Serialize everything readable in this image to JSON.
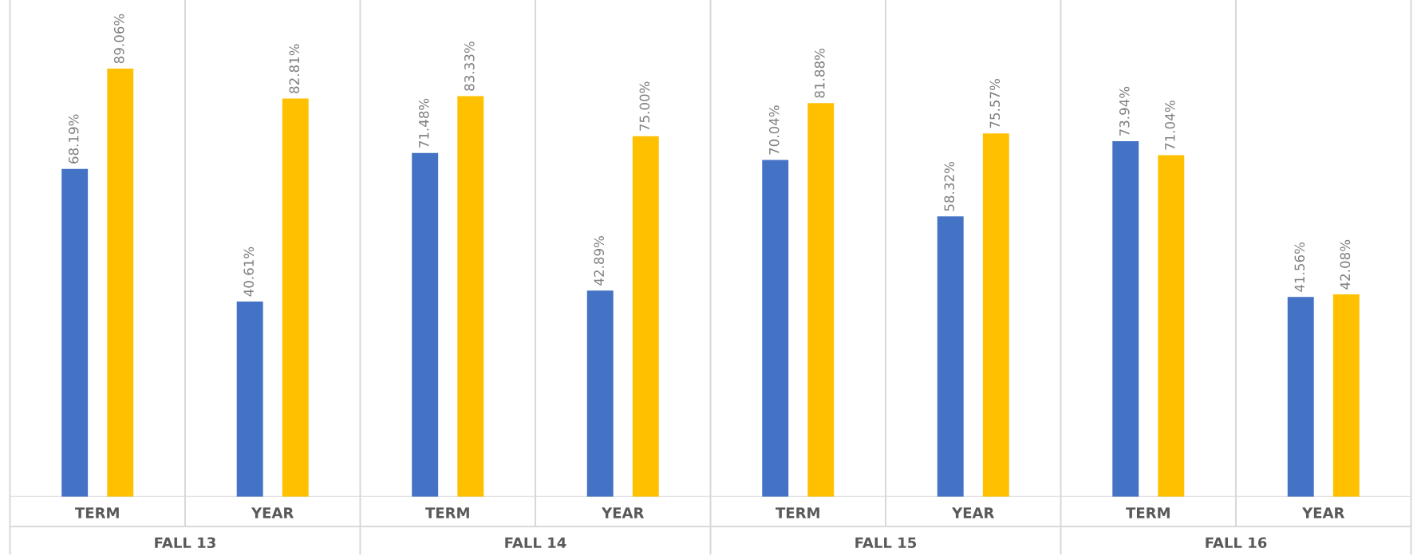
{
  "chart_data": {
    "type": "bar",
    "categories": [
      "TERM",
      "YEAR",
      "TERM",
      "YEAR",
      "TERM",
      "YEAR",
      "TERM",
      "YEAR"
    ],
    "series": [
      {
        "color": "#4472c4",
        "values": [
          68.19,
          40.61,
          71.48,
          42.89,
          70.04,
          58.32,
          73.94,
          41.56
        ],
        "value_labels": [
          "68.19%",
          "40.61%",
          "71.48%",
          "42.89%",
          "70.04%",
          "58.32%",
          "73.94%",
          "41.56%"
        ]
      },
      {
        "color": "#ffc000",
        "values": [
          89.06,
          82.81,
          83.33,
          75.0,
          81.88,
          75.57,
          71.04,
          42.08
        ],
        "value_labels": [
          "89.06%",
          "82.81%",
          "83.33%",
          "75.00%",
          "81.88%",
          "75.57%",
          "71.04%",
          "42.08%"
        ]
      }
    ],
    "annotations": [
      "FALL 13",
      "FALL 14",
      "FALL 15",
      "FALL 16"
    ]
  }
}
